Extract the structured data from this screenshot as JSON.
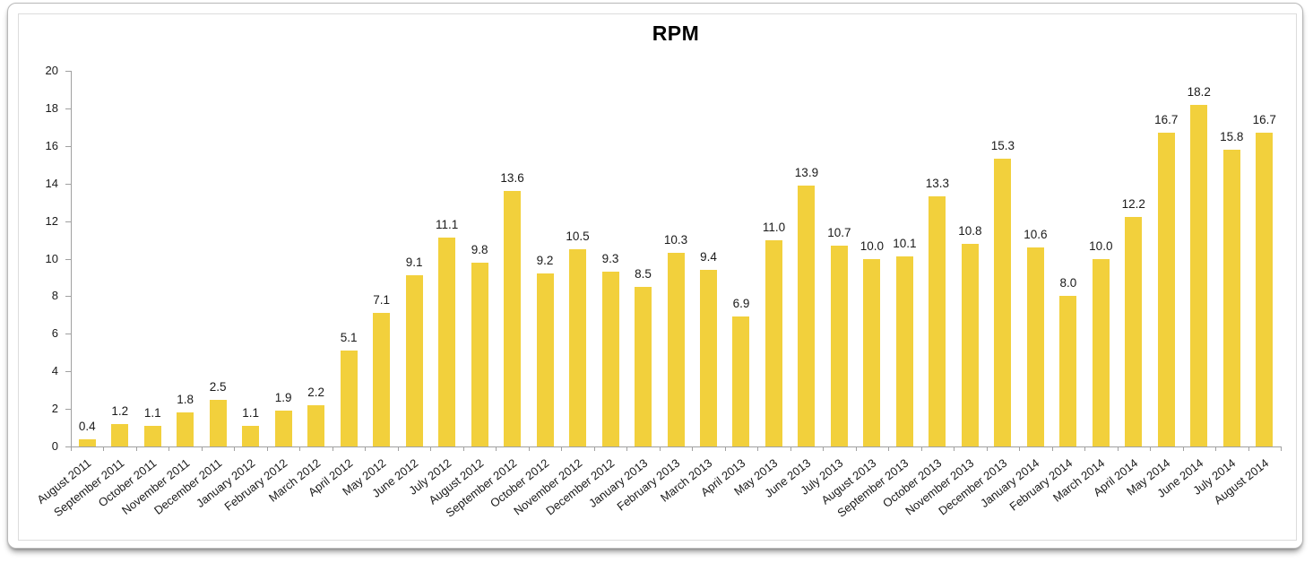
{
  "chart_data": {
    "type": "bar",
    "title": "RPM",
    "categories": [
      "August 2011",
      "September 2011",
      "October 2011",
      "November 2011",
      "December 2011",
      "January 2012",
      "February 2012",
      "March 2012",
      "April 2012",
      "May 2012",
      "June 2012",
      "July 2012",
      "August 2012",
      "September 2012",
      "October 2012",
      "November 2012",
      "December 2012",
      "January 2013",
      "February 2013",
      "March 2013",
      "April 2013",
      "May 2013",
      "June 2013",
      "July 2013",
      "August 2013",
      "September 2013",
      "October 2013",
      "November 2013",
      "December 2013",
      "January 2014",
      "February 2014",
      "March 2014",
      "April 2014",
      "May 2014",
      "June 2014",
      "July 2014",
      "August 2014"
    ],
    "values": [
      0.4,
      1.2,
      1.1,
      1.8,
      2.5,
      1.1,
      1.9,
      2.2,
      5.1,
      7.1,
      9.1,
      11.1,
      9.8,
      13.6,
      9.2,
      10.5,
      9.3,
      8.5,
      10.3,
      9.4,
      6.9,
      11.0,
      13.9,
      10.7,
      10.0,
      10.1,
      13.3,
      10.8,
      15.3,
      10.6,
      8.0,
      10.0,
      12.2,
      16.7,
      18.2,
      15.8,
      16.7
    ],
    "xlabel": "",
    "ylabel": "",
    "ylim": [
      0,
      20
    ],
    "y_ticks": [
      0,
      2,
      4,
      6,
      8,
      10,
      12,
      14,
      16,
      18,
      20
    ],
    "grid": false,
    "legend_position": "none",
    "data_labels": "one-decimal-above-bar",
    "x_tick_label_rotation_deg": -38,
    "bar_color": "#F2D03C",
    "axis_color": "#a0a0a0",
    "text_color": "#1a1a1a"
  }
}
